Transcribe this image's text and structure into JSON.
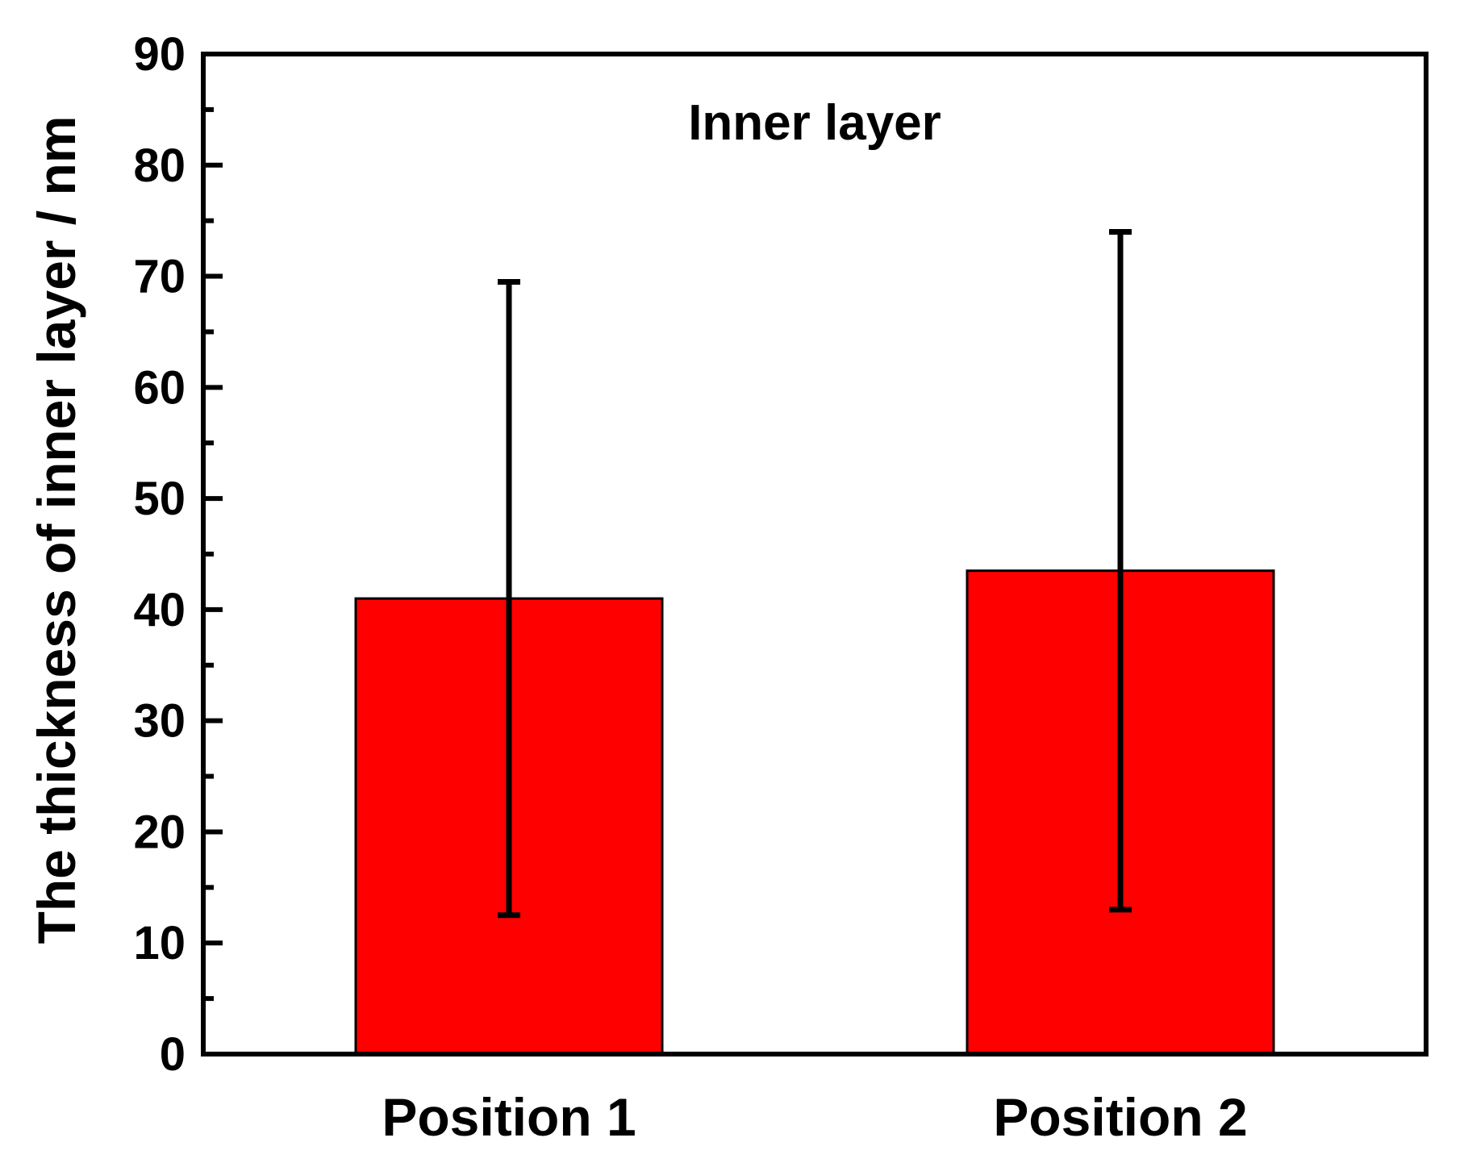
{
  "chart_data": {
    "type": "bar",
    "categories": [
      "Position 1",
      "Position 2"
    ],
    "values": [
      41,
      43.5
    ],
    "error_bars": {
      "lower": [
        12.5,
        13
      ],
      "upper": [
        69.5,
        74
      ]
    },
    "ylabel": "The thickness of inner layer / nm",
    "xlabel": "",
    "annotation": "Inner layer",
    "ylim": [
      0,
      90
    ],
    "yticks": [
      0,
      10,
      20,
      30,
      40,
      50,
      60,
      70,
      80,
      90
    ],
    "grid": false,
    "bar_color": "#ff0000",
    "axis_color": "#000000"
  }
}
